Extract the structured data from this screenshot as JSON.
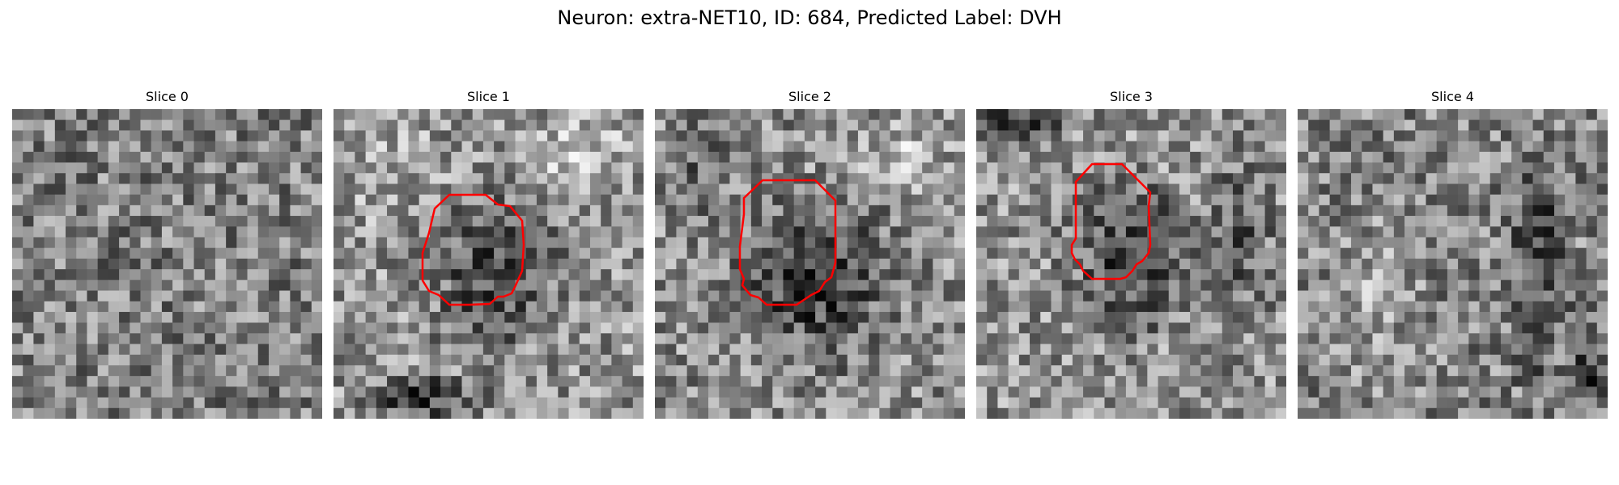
{
  "title": "Neuron: extra-NET10, ID: 684, Predicted Label: DVH",
  "colors": {
    "background": "#ffffff",
    "contour": "#ff0000"
  },
  "panels": [
    {
      "title": "Slice 0",
      "has_contour": false
    },
    {
      "title": "Slice 1",
      "has_contour": true
    },
    {
      "title": "Slice 2",
      "has_contour": true
    },
    {
      "title": "Slice 3",
      "has_contour": true
    },
    {
      "title": "Slice 4",
      "has_contour": false
    }
  ]
}
